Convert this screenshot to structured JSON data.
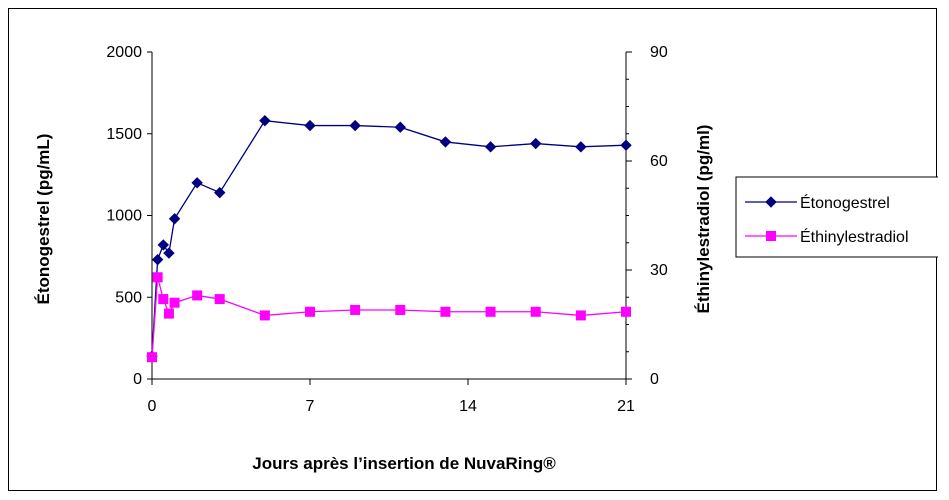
{
  "chart_data": {
    "type": "line",
    "title": "",
    "xlabel": "Jours après l’insertion de NuvaRing®",
    "ylabel_left": "Étonogestrel (pg/mL)",
    "ylabel_right": "Éthinylestradiol (pg/ml)",
    "xlim": [
      0,
      21
    ],
    "xticks": [
      "0",
      "7",
      "14",
      "21"
    ],
    "xtick_values": [
      0,
      7,
      14,
      21
    ],
    "ylim_left": [
      0,
      2000
    ],
    "yticks_left": [
      "0",
      "500",
      "1000",
      "1500",
      "2000"
    ],
    "ytick_values_left": [
      0,
      500,
      1000,
      1500,
      2000
    ],
    "ylim_right": [
      0,
      90
    ],
    "yticks_right": [
      "0",
      "30",
      "60",
      "90"
    ],
    "ytick_values_right": [
      0,
      30,
      60,
      90
    ],
    "grid": false,
    "legend_position": "right",
    "series": [
      {
        "name": "Étonogestrel",
        "axis": "left",
        "color": "#000080",
        "marker": "diamond",
        "x": [
          0,
          0.25,
          0.5,
          0.75,
          1,
          2,
          3,
          5,
          7,
          9,
          11,
          13,
          15,
          17,
          19,
          21
        ],
        "y": [
          140,
          730,
          820,
          770,
          980,
          1200,
          1140,
          1580,
          1550,
          1550,
          1540,
          1450,
          1420,
          1440,
          1420,
          1430
        ]
      },
      {
        "name": "Éthinylestradiol",
        "axis": "right",
        "color": "#FF00FF",
        "marker": "square",
        "x": [
          0,
          0.25,
          0.5,
          0.75,
          1,
          2,
          3,
          5,
          7,
          9,
          11,
          13,
          15,
          17,
          19,
          21
        ],
        "y": [
          6,
          28,
          22,
          18,
          21,
          23,
          22,
          17.5,
          18.5,
          19,
          19,
          18.5,
          18.5,
          18.5,
          17.5,
          18.5
        ]
      }
    ]
  }
}
